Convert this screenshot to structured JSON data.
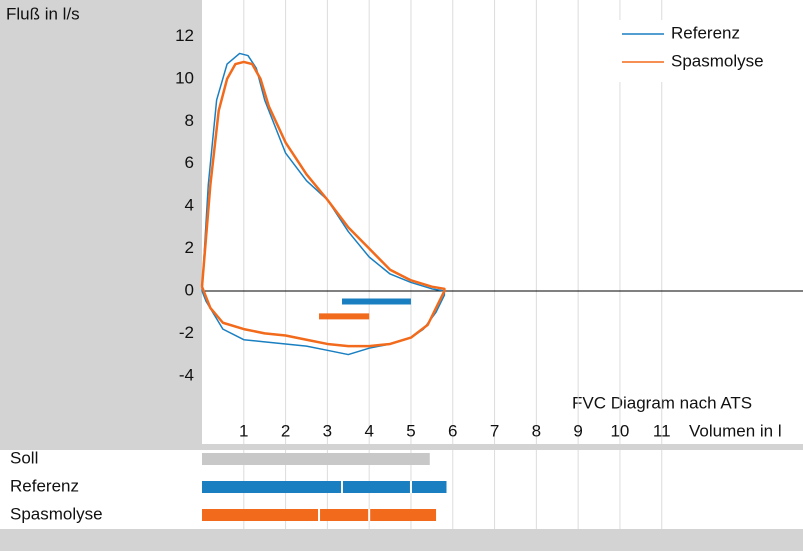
{
  "chart_data": {
    "type": "line",
    "ylabel": "Fluß in l/s",
    "xlabel": "Volumen in l",
    "annotation": "FVC Diagram nach ATS",
    "xlim": [
      0,
      14.38
    ],
    "ylim": [
      -5.85,
      13.72
    ],
    "xticks": [
      1,
      2,
      3,
      4,
      5,
      6,
      7,
      8,
      9,
      10,
      11
    ],
    "yticks": [
      -4,
      -2,
      0,
      2,
      4,
      6,
      8,
      10,
      12
    ],
    "grid": true,
    "legend": "top-right",
    "series": [
      {
        "name": "Referenz",
        "color": "#1a7fc1",
        "x": [
          0,
          0.15,
          0.35,
          0.6,
          0.9,
          1.1,
          1.3,
          1.5,
          2,
          2.5,
          3,
          3.5,
          4,
          4.5,
          5,
          5.5,
          5.8,
          5.8,
          5.6,
          5.3,
          5,
          4.5,
          4,
          3.5,
          3,
          2.5,
          2,
          1.5,
          1,
          0.5,
          0.1,
          0
        ],
        "values": [
          0,
          5,
          9,
          10.7,
          11.2,
          11.1,
          10.5,
          9,
          6.5,
          5.2,
          4.3,
          2.8,
          1.6,
          0.8,
          0.4,
          0.1,
          0,
          -0.2,
          -1,
          -1.8,
          -2.2,
          -2.5,
          -2.7,
          -3,
          -2.8,
          -2.6,
          -2.5,
          -2.4,
          -2.3,
          -1.8,
          -0.5,
          0
        ]
      },
      {
        "name": "Spasmolyse",
        "color": "#f26a1b",
        "x": [
          0,
          0.2,
          0.4,
          0.6,
          0.8,
          1,
          1.2,
          1.4,
          1.6,
          2,
          2.5,
          3,
          3.5,
          4,
          4.5,
          5,
          5.5,
          5.8,
          5.8,
          5.6,
          5.4,
          5,
          4.5,
          4,
          3.5,
          3,
          2.5,
          2,
          1.5,
          1,
          0.5,
          0.2,
          0
        ],
        "values": [
          0.2,
          5,
          8.5,
          10,
          10.7,
          10.8,
          10.7,
          10,
          8.7,
          7,
          5.5,
          4.3,
          3,
          2,
          1,
          0.5,
          0.2,
          0.1,
          0,
          -0.8,
          -1.6,
          -2.2,
          -2.5,
          -2.6,
          -2.6,
          -2.5,
          -2.3,
          -2.1,
          -2,
          -1.8,
          -1.5,
          -0.8,
          0.2
        ]
      }
    ],
    "markers": [
      {
        "color": "#1a7fc1",
        "y": -0.5,
        "x": [
          3.35,
          5.0
        ]
      },
      {
        "color": "#f26a1b",
        "y": -1.2,
        "x": [
          2.8,
          4.0
        ]
      }
    ],
    "bars": [
      {
        "name": "Soll",
        "color": "#c8c8c8",
        "value": 5.45,
        "splits": []
      },
      {
        "name": "Referenz",
        "color": "#1a7fc1",
        "value": 5.85,
        "splits": [
          3.35,
          5.0
        ]
      },
      {
        "name": "Spasmolyse",
        "color": "#f26a1b",
        "value": 5.6,
        "splits": [
          2.8,
          4.0
        ]
      }
    ]
  }
}
